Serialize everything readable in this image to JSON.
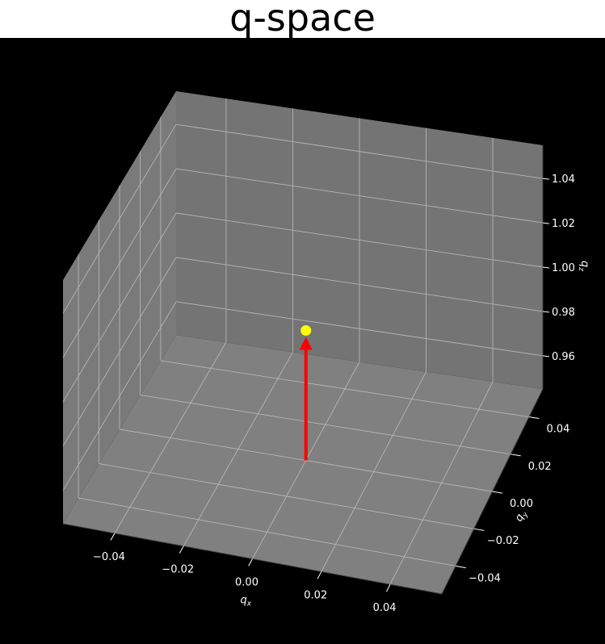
{
  "chart_data": {
    "type": "scatter",
    "title": "q-space",
    "projection": "3d",
    "xlabel": "q_x",
    "ylabel": "q_y",
    "zlabel": "q_z",
    "x_ticks": [
      "−0.04",
      "−0.02",
      "0.00",
      "0.02",
      "0.04"
    ],
    "y_ticks": [
      "−0.04",
      "−0.02",
      "0.00",
      "0.02",
      "0.04"
    ],
    "z_ticks": [
      "0.96",
      "0.98",
      "1.00",
      "1.02",
      "1.04"
    ],
    "xlim": [
      -0.055,
      0.055
    ],
    "ylim": [
      -0.055,
      0.055
    ],
    "zlim": [
      0.945,
      1.055
    ],
    "grid": true,
    "points": [
      {
        "x": 0.0,
        "y": 0.0,
        "z": 1.0,
        "color": "#ffff00"
      }
    ],
    "arrows": [
      {
        "x": 0.0,
        "y": 0.0,
        "z": 0.945,
        "dx": 0.0,
        "dy": 0.0,
        "dz": 0.055,
        "color": "#ff0000"
      }
    ]
  },
  "colors": {
    "figure_background": "#000000",
    "pane_floor": "#808080",
    "pane_back": "#747474",
    "pane_left": "#7a7a7a",
    "grid": "#b4b4b4",
    "text": "#ffffff"
  }
}
